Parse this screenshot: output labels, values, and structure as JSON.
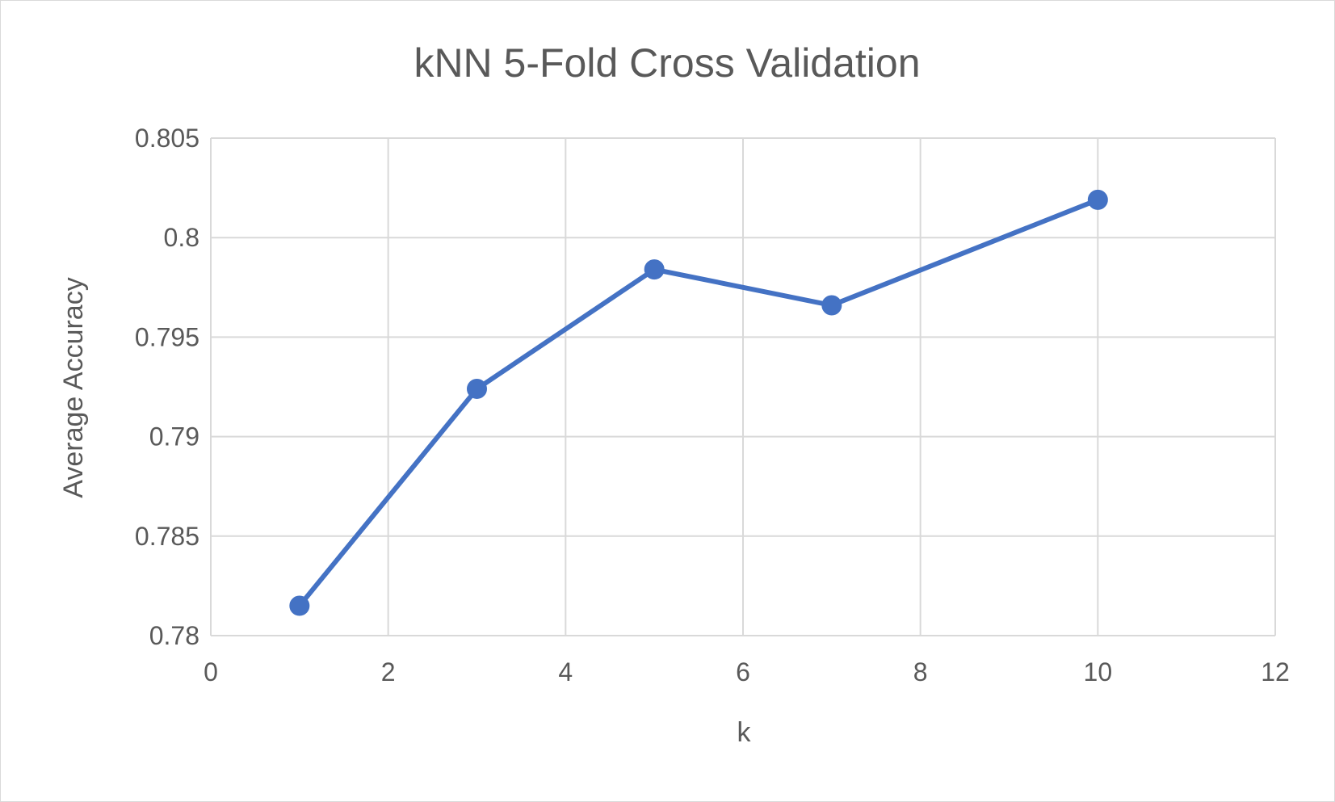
{
  "chart_data": {
    "type": "scatter",
    "title": "kNN 5-Fold Cross Validation",
    "xlabel": "k",
    "ylabel": "Average Accuracy",
    "xlim": [
      0,
      12
    ],
    "ylim": [
      0.78,
      0.805
    ],
    "x_ticks": [
      0,
      2,
      4,
      6,
      8,
      10,
      12
    ],
    "y_ticks": [
      0.78,
      0.785,
      0.79,
      0.795,
      0.8,
      0.805
    ],
    "x_tick_labels": [
      "0",
      "2",
      "4",
      "6",
      "8",
      "10",
      "12"
    ],
    "y_tick_labels": [
      "0.78",
      "0.785",
      "0.79",
      "0.795",
      "0.8",
      "0.805"
    ],
    "grid": true,
    "markers": true,
    "lines": "straight",
    "series": [
      {
        "x": [
          1,
          3,
          5,
          7,
          10
        ],
        "y": [
          0.7815,
          0.7924,
          0.7984,
          0.7966,
          0.8019
        ],
        "color": "#4472c4"
      }
    ]
  }
}
